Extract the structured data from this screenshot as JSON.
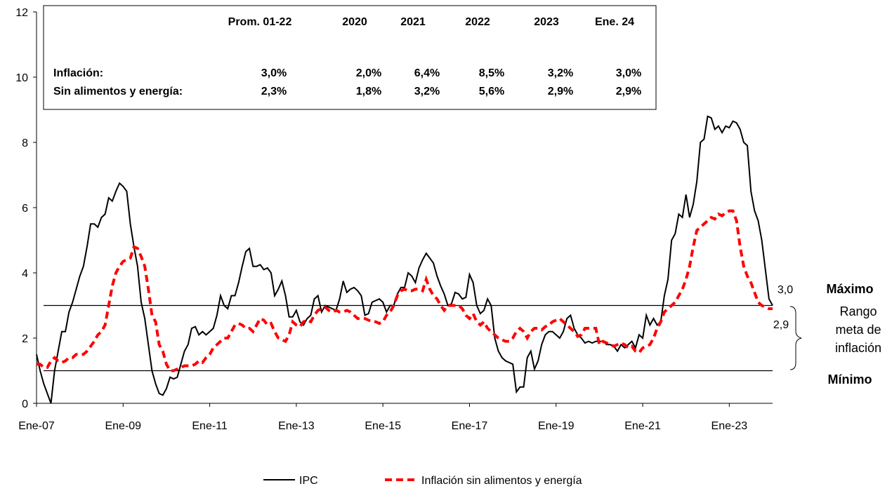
{
  "chart_data": {
    "type": "line",
    "categories": [
      "Ene-07",
      null,
      null,
      null,
      null,
      null,
      null,
      null,
      null,
      null,
      null,
      null,
      null,
      null,
      null,
      null,
      null,
      null,
      null,
      null,
      null,
      null,
      null,
      null,
      "Ene-09",
      null,
      null,
      null,
      null,
      null,
      null,
      null,
      null,
      null,
      null,
      null,
      null,
      null,
      null,
      null,
      null,
      null,
      null,
      null,
      null,
      null,
      null,
      null,
      "Ene-11",
      null,
      null,
      null,
      null,
      null,
      null,
      null,
      null,
      null,
      null,
      null,
      null,
      null,
      null,
      null,
      null,
      null,
      null,
      null,
      null,
      null,
      null,
      null,
      "Ene-13",
      null,
      null,
      null,
      null,
      null,
      null,
      null,
      null,
      null,
      null,
      null,
      null,
      null,
      null,
      null,
      null,
      null,
      null,
      null,
      null,
      null,
      null,
      null,
      "Ene-15",
      null,
      null,
      null,
      null,
      null,
      null,
      null,
      null,
      null,
      null,
      null,
      null,
      null,
      null,
      null,
      null,
      null,
      null,
      null,
      null,
      null,
      null,
      null,
      "Ene-17",
      null,
      null,
      null,
      null,
      null,
      null,
      null,
      null,
      null,
      null,
      null,
      null,
      null,
      null,
      null,
      null,
      null,
      null,
      null,
      null,
      null,
      null,
      null,
      "Ene-19",
      null,
      null,
      null,
      null,
      null,
      null,
      null,
      null,
      null,
      null,
      null,
      null,
      null,
      null,
      null,
      null,
      null,
      null,
      null,
      null,
      null,
      null,
      null,
      "Ene-21",
      null,
      null,
      null,
      null,
      null,
      null,
      null,
      null,
      null,
      null,
      null,
      null,
      null,
      null,
      null,
      null,
      null,
      null,
      null,
      null,
      null,
      null,
      null,
      "Ene-23",
      null,
      null,
      null,
      null,
      null,
      null,
      null,
      null,
      null,
      null,
      null,
      null
    ],
    "series": [
      {
        "name": "IPC",
        "color": "#000000",
        "dashed": false,
        "values": [
          1.5,
          1.0,
          0.6,
          0.3,
          0,
          1.0,
          1.6,
          2.2,
          2.2,
          2.8,
          3.1,
          3.5,
          3.9,
          4.2,
          4.8,
          5.5,
          5.5,
          5.4,
          5.7,
          5.8,
          6.3,
          6.2,
          6.5,
          6.75,
          6.65,
          6.5,
          5.5,
          4.8,
          4.2,
          3.1,
          2.6,
          1.8,
          1.0,
          0.6,
          0.3,
          0.25,
          0.45,
          0.8,
          0.75,
          0.8,
          1.2,
          1.6,
          1.8,
          2.3,
          2.35,
          2.1,
          2.2,
          2.1,
          2.2,
          2.3,
          2.7,
          3.3,
          3.0,
          2.9,
          3.3,
          3.3,
          3.7,
          4.2,
          4.65,
          4.75,
          4.2,
          4.2,
          4.25,
          4.1,
          4.15,
          4.0,
          3.3,
          3.5,
          3.75,
          3.3,
          2.65,
          2.65,
          2.85,
          2.5,
          2.4,
          2.6,
          2.7,
          3.2,
          3.3,
          2.8,
          3.0,
          2.95,
          2.9,
          2.85,
          3.2,
          3.75,
          3.4,
          3.5,
          3.55,
          3.45,
          3.3,
          2.7,
          2.75,
          3.1,
          3.15,
          3.2,
          3.1,
          2.8,
          3.0,
          3.0,
          3.35,
          3.55,
          3.55,
          4.0,
          3.9,
          3.7,
          4.15,
          4.4,
          4.6,
          4.45,
          4.3,
          3.9,
          3.6,
          3.35,
          3.0,
          3.05,
          3.4,
          3.35,
          3.2,
          3.25,
          3.95,
          3.7,
          3.0,
          2.75,
          2.85,
          3.2,
          3.0,
          2.0,
          1.6,
          1.4,
          1.3,
          1.25,
          1.2,
          0.35,
          0.5,
          0.5,
          1.4,
          1.6,
          1.05,
          1.3,
          1.8,
          2.1,
          2.2,
          2.2,
          2.1,
          2.0,
          2.2,
          2.6,
          2.7,
          2.3,
          2.1,
          2.0,
          1.85,
          1.9,
          1.85,
          1.9,
          1.9,
          1.9,
          1.8,
          1.8,
          1.75,
          1.6,
          1.8,
          1.7,
          1.8,
          1.9,
          1.7,
          2.1,
          2.0,
          2.7,
          2.4,
          2.6,
          2.4,
          2.5,
          3.3,
          3.8,
          5.0,
          5.2,
          5.8,
          5.7,
          6.4,
          5.7,
          6.1,
          6.8,
          8.0,
          8.1,
          8.8,
          8.75,
          8.4,
          8.5,
          8.3,
          8.5,
          8.45,
          8.65,
          8.6,
          8.4,
          8.0,
          7.9,
          6.5,
          5.9,
          5.6,
          5.0,
          4.1,
          3.2,
          3.0
        ]
      },
      {
        "name": "Inflación sin alimentos y energía",
        "color": "#ff0000",
        "dashed": true,
        "values": [
          1.2,
          1.2,
          1.1,
          1.1,
          1.3,
          1.4,
          1.3,
          1.25,
          1.3,
          1.4,
          1.4,
          1.5,
          1.5,
          1.5,
          1.6,
          1.75,
          1.9,
          2.1,
          2.2,
          2.4,
          3.0,
          3.6,
          4.0,
          4.2,
          4.35,
          4.4,
          4.45,
          4.8,
          4.75,
          4.5,
          4.2,
          3.5,
          2.7,
          2.5,
          1.8,
          1.6,
          1.2,
          1.0,
          1.0,
          1.05,
          1.1,
          1.15,
          1.15,
          1.15,
          1.2,
          1.3,
          1.25,
          1.4,
          1.5,
          1.7,
          1.8,
          1.9,
          2.0,
          2.0,
          2.2,
          2.4,
          2.45,
          2.4,
          2.3,
          2.3,
          2.2,
          2.4,
          2.6,
          2.55,
          2.4,
          2.45,
          2.2,
          2.0,
          1.95,
          1.9,
          2.1,
          2.5,
          2.4,
          2.35,
          2.5,
          2.55,
          2.5,
          2.7,
          2.85,
          2.9,
          2.95,
          2.85,
          2.8,
          2.85,
          2.8,
          2.8,
          2.85,
          2.8,
          2.7,
          2.6,
          2.6,
          2.6,
          2.55,
          2.5,
          2.5,
          2.45,
          2.5,
          2.7,
          2.8,
          3.0,
          3.3,
          3.45,
          3.5,
          3.45,
          3.45,
          3.5,
          3.5,
          3.45,
          3.8,
          3.5,
          3.3,
          3.2,
          3.0,
          2.85,
          3.0,
          3.0,
          3.0,
          3.0,
          2.9,
          2.7,
          2.6,
          2.75,
          2.5,
          2.4,
          2.5,
          2.3,
          2.2,
          2.1,
          2.0,
          1.95,
          1.9,
          1.9,
          2.0,
          2.2,
          2.3,
          2.2,
          2.0,
          2.2,
          2.3,
          2.3,
          2.25,
          2.35,
          2.4,
          2.5,
          2.55,
          2.6,
          2.5,
          2.4,
          2.3,
          2.2,
          2.05,
          2.1,
          2.3,
          2.3,
          2.3,
          2.3,
          1.8,
          1.9,
          1.85,
          1.8,
          1.75,
          1.8,
          1.85,
          1.8,
          1.7,
          1.75,
          1.6,
          1.55,
          1.7,
          1.75,
          1.8,
          2.0,
          2.3,
          2.5,
          2.8,
          2.9,
          3.0,
          3.1,
          3.3,
          3.5,
          3.8,
          4.2,
          4.8,
          5.3,
          5.4,
          5.5,
          5.6,
          5.7,
          5.65,
          5.8,
          5.75,
          5.85,
          5.9,
          5.9,
          5.6,
          4.8,
          4.2,
          3.9,
          3.7,
          3.4,
          3.1,
          3.0,
          2.95,
          2.9,
          2.9
        ]
      }
    ],
    "ylim": [
      0,
      12
    ],
    "yticks": [
      0,
      2,
      4,
      6,
      8,
      10,
      12
    ],
    "grid": false,
    "reference_lines": [
      {
        "label": "Máximo",
        "value": 3
      },
      {
        "label": "Mínimo",
        "value": 1
      }
    ],
    "range_label": [
      "Rango",
      "meta de",
      "inflación"
    ],
    "end_labels": [
      "3,0",
      "2,9"
    ],
    "legend": "bottom",
    "table": {
      "columns": [
        "Prom. 01-22",
        "2020",
        "2021",
        "2022",
        "2023",
        "Ene. 24"
      ],
      "rows": [
        {
          "label": "Inflación:",
          "values": [
            "3,0%",
            "2,0%",
            "6,4%",
            "8,5%",
            "3,2%",
            "3,0%"
          ]
        },
        {
          "label": "Sin alimentos y energía:",
          "values": [
            "2,3%",
            "1,8%",
            "3,2%",
            "5,6%",
            "2,9%",
            "2,9%"
          ]
        }
      ]
    }
  }
}
